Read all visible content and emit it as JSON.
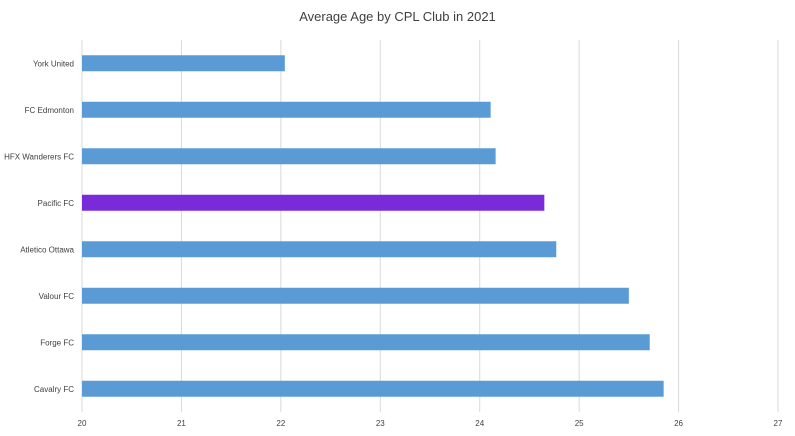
{
  "chart_data": {
    "type": "bar",
    "orientation": "horizontal",
    "title": "Average Age by CPL Club in 2021",
    "xlabel": "",
    "ylabel": "",
    "xlim": [
      20,
      27
    ],
    "x_ticks": [
      "20",
      "21",
      "22",
      "23",
      "24",
      "25",
      "26",
      "27"
    ],
    "grid": true,
    "legend": "none",
    "categories": [
      "York United",
      "FC Edmonton",
      "HFX Wanderers FC",
      "Pacific FC",
      "Atletico Ottawa",
      "Valour FC",
      "Forge FC",
      "Cavalry FC"
    ],
    "values": [
      22.04,
      24.11,
      24.16,
      24.65,
      24.77,
      25.5,
      25.71,
      25.85
    ],
    "colors": {
      "default": "#5b9bd5",
      "highlight": "#7a2bd9",
      "highlight_category": "Pacific FC",
      "grid": "#d9d9d9",
      "text": "#404040"
    }
  }
}
